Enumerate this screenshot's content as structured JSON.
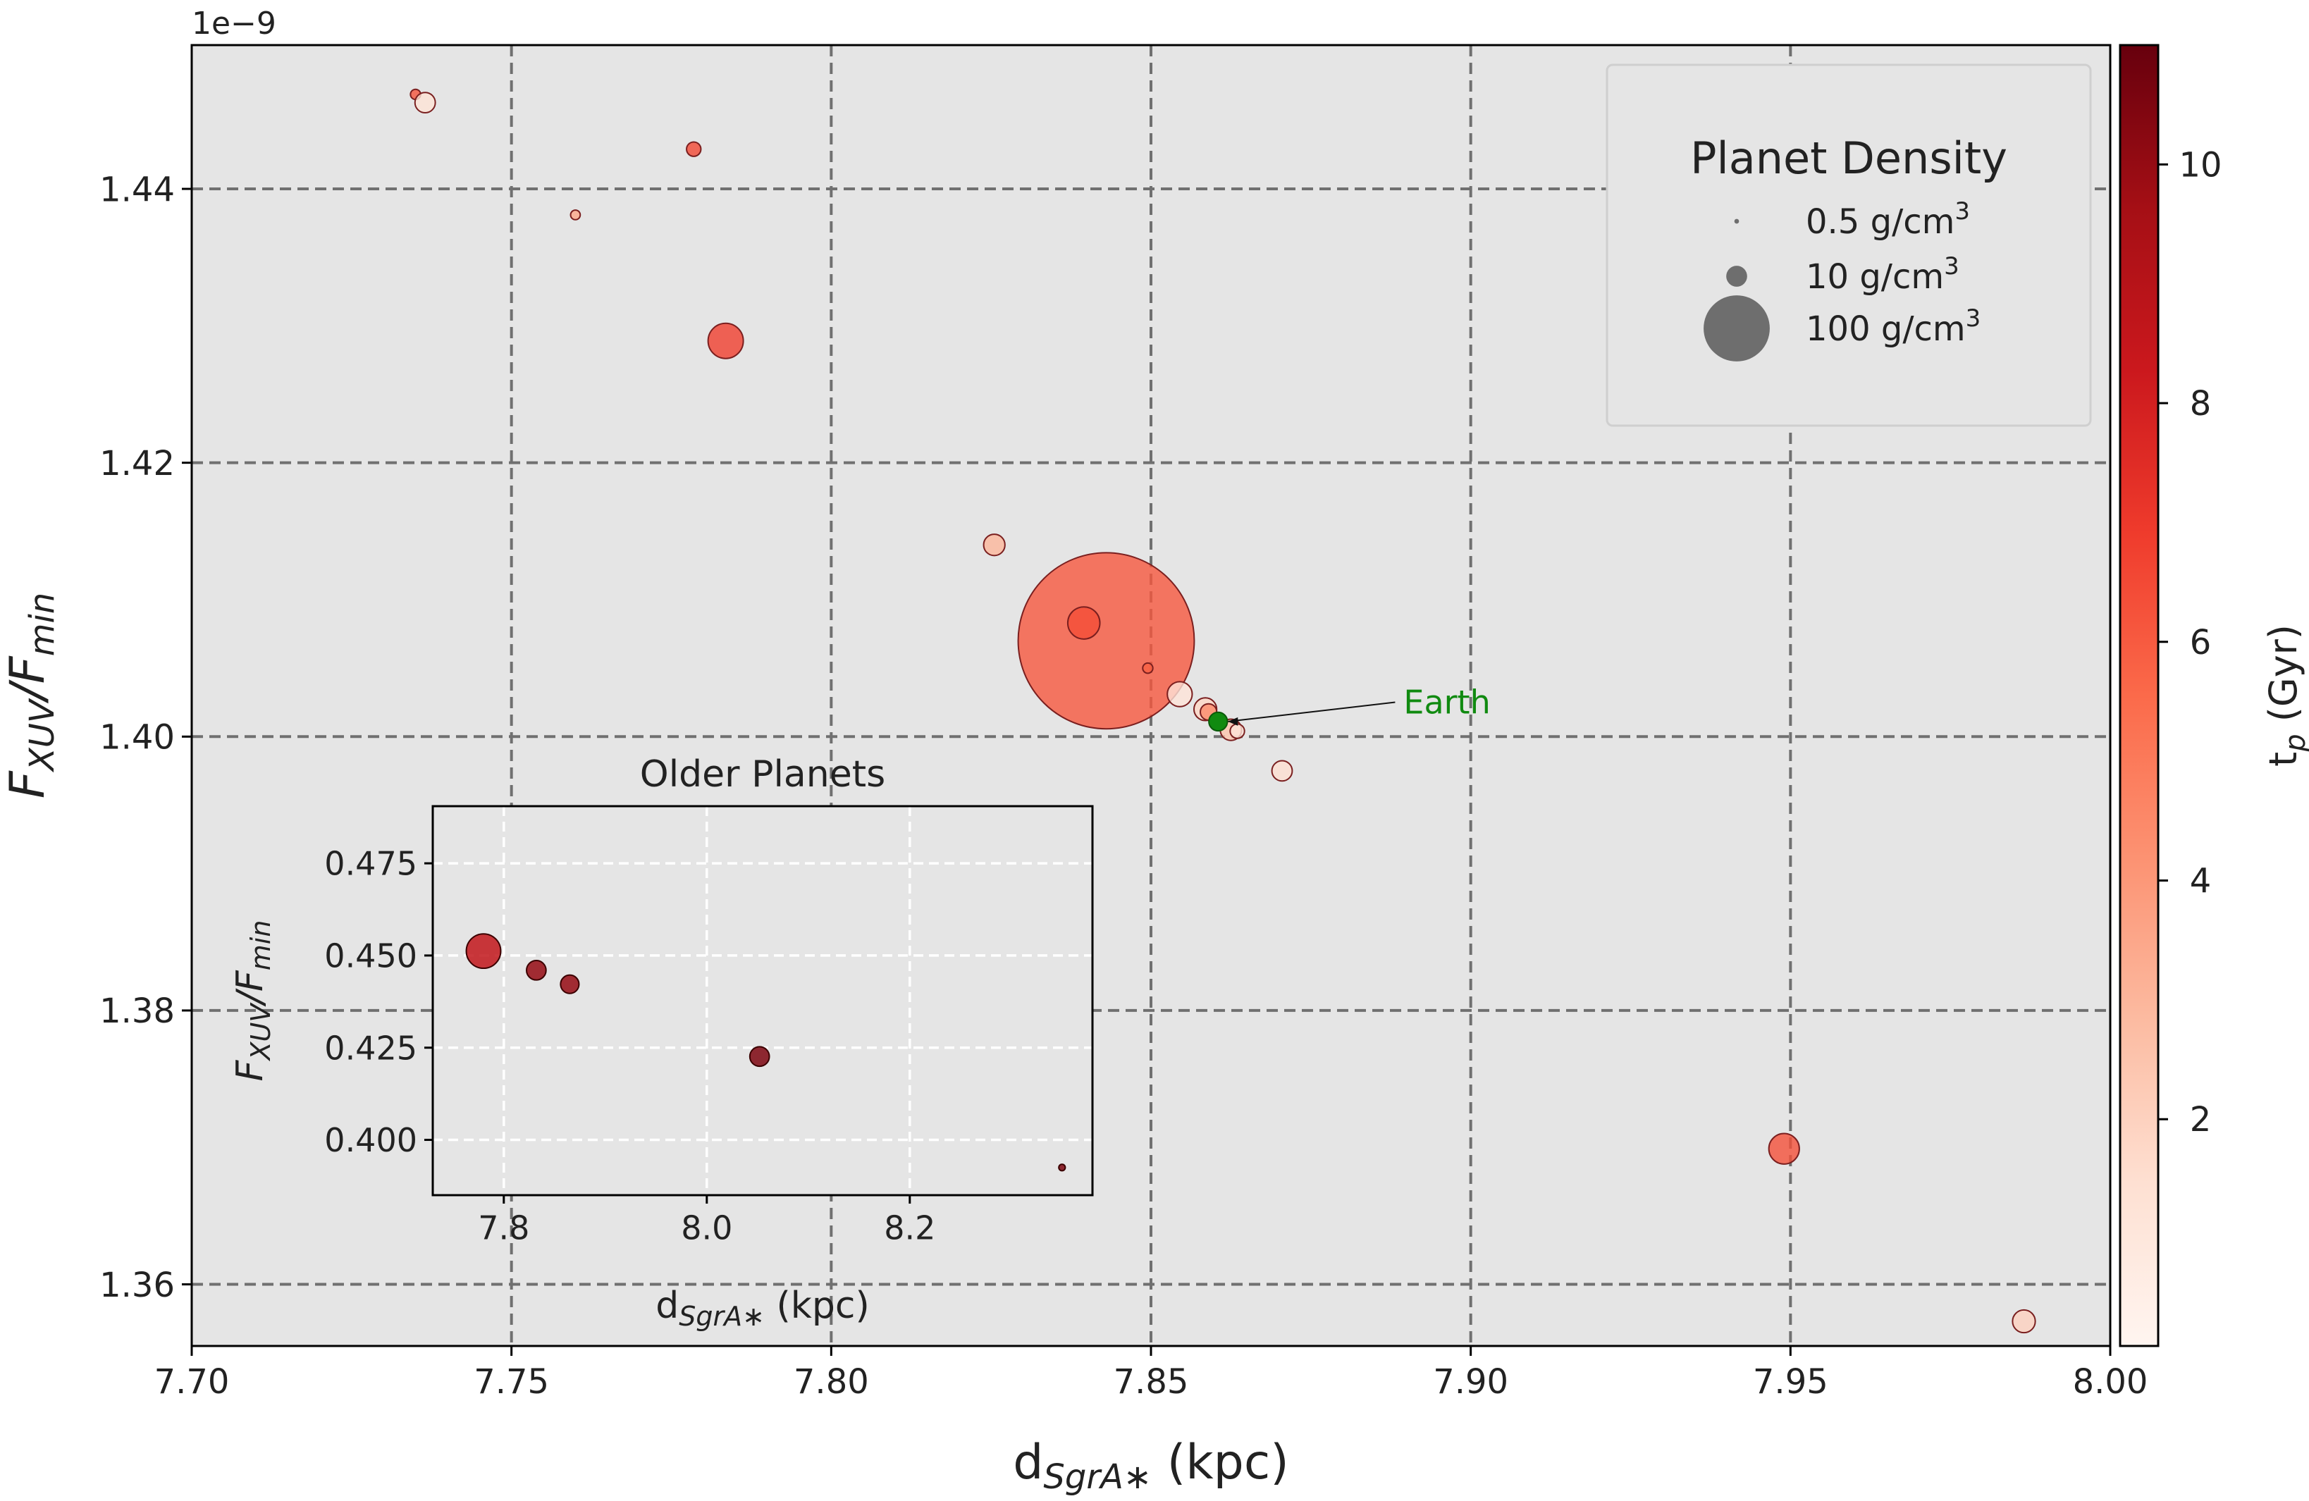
{
  "chart_data": [
    {
      "type": "scatter",
      "panel": "main",
      "exponent_label": "1e−9",
      "xlabel": {
        "main": "d",
        "sub": "SgrA∗",
        "unit": " (kpc)"
      },
      "ylabel": {
        "main": "F",
        "sub1": "XUV",
        "slash": "/F",
        "sub2": "min"
      },
      "xlim": [
        7.7,
        8.0
      ],
      "ylim": [
        1.3555,
        1.4505
      ],
      "xticks": [
        7.7,
        7.75,
        7.8,
        7.85,
        7.9,
        7.95,
        8.0
      ],
      "xtick_labels": [
        "7.70",
        "7.75",
        "7.80",
        "7.85",
        "7.90",
        "7.95",
        "8.00"
      ],
      "yticks": [
        1.36,
        1.38,
        1.4,
        1.42,
        1.44
      ],
      "ytick_labels": [
        "1.36",
        "1.38",
        "1.40",
        "1.42",
        "1.44"
      ],
      "grid": true,
      "points": [
        {
          "x": 7.735,
          "y": 1.4469,
          "density": 0.5,
          "age": 6.2
        },
        {
          "x": 7.7365,
          "y": 1.4463,
          "density": 2.0,
          "age": 1.3
        },
        {
          "x": 7.7785,
          "y": 1.4429,
          "density": 1.0,
          "age": 6.5
        },
        {
          "x": 7.76,
          "y": 1.4381,
          "density": 0.45,
          "age": 3.5
        },
        {
          "x": 7.7835,
          "y": 1.4289,
          "density": 6.0,
          "age": 6.8
        },
        {
          "x": 7.8255,
          "y": 1.414,
          "density": 2.2,
          "age": 3.0
        },
        {
          "x": 7.843,
          "y": 1.407,
          "density": 150,
          "age": 6.1
        },
        {
          "x": 7.8395,
          "y": 1.4083,
          "density": 5.0,
          "age": 6.4
        },
        {
          "x": 7.8495,
          "y": 1.405,
          "density": 0.5,
          "age": 5.8
        },
        {
          "x": 7.8545,
          "y": 1.4031,
          "density": 3.0,
          "age": 1.2
        },
        {
          "x": 7.8585,
          "y": 1.402,
          "density": 2.5,
          "age": 1.8
        },
        {
          "x": 7.859,
          "y": 1.4018,
          "density": 1.3,
          "age": 4.5
        },
        {
          "x": 7.8625,
          "y": 1.4005,
          "density": 2.2,
          "age": 2.5
        },
        {
          "x": 7.8635,
          "y": 1.4004,
          "density": 1.0,
          "age": 1.2
        },
        {
          "x": 7.8705,
          "y": 1.3975,
          "density": 2.0,
          "age": 1.5
        },
        {
          "x": 7.949,
          "y": 1.3699,
          "density": 4.5,
          "age": 6.3
        },
        {
          "x": 7.9865,
          "y": 1.3573,
          "density": 2.5,
          "age": 2.0
        }
      ],
      "earth": {
        "x": 7.8605,
        "y": 1.4011,
        "density": 5.51,
        "color": "#108a10",
        "label": "Earth",
        "label_x": 7.8895,
        "label_y": 1.4021
      },
      "legend": {
        "title": "Planet Density",
        "placement": "top-right",
        "entries": [
          {
            "density": 0.5,
            "label": "0.5 g/cm",
            "sup": "3"
          },
          {
            "density": 10,
            "label": "10 g/cm",
            "sup": "3"
          },
          {
            "density": 100,
            "label": "100 g/cm",
            "sup": "3"
          }
        ]
      },
      "colorbar": {
        "label": "t",
        "label_sub": "p",
        "label_unit": " (Gyr)",
        "range": [
          0.1,
          11.0
        ],
        "ticks": [
          2,
          4,
          6,
          8,
          10
        ],
        "tick_labels": [
          "2",
          "4",
          "6",
          "8",
          "10"
        ],
        "colormap": [
          "#fff5f0",
          "#fee0d2",
          "#fcbba1",
          "#fc9272",
          "#fb6a4a",
          "#ef3b2c",
          "#cb181d",
          "#a50f15",
          "#67000d"
        ]
      }
    },
    {
      "type": "scatter",
      "panel": "inset",
      "title": "Older Planets",
      "xlabel": {
        "main": "d",
        "sub": "SgrA∗",
        "unit": " (kpc)"
      },
      "ylabel": {
        "main": "F",
        "sub1": "XUV",
        "slash": "/F",
        "sub2": "min"
      },
      "xlim": [
        7.73,
        8.38
      ],
      "ylim": [
        0.385,
        0.4905
      ],
      "xticks": [
        7.8,
        8.0,
        8.2
      ],
      "xtick_labels": [
        "7.8",
        "8.0",
        "8.2"
      ],
      "yticks": [
        0.4,
        0.425,
        0.45,
        0.475
      ],
      "ytick_labels": [
        "0.400",
        "0.425",
        "0.450",
        "0.475"
      ],
      "grid": true,
      "points": [
        {
          "x": 7.78,
          "y": 0.4512,
          "density": 14,
          "age": 8.6
        },
        {
          "x": 7.832,
          "y": 0.446,
          "density": 4.5,
          "age": 10.0
        },
        {
          "x": 7.865,
          "y": 0.4422,
          "density": 4.0,
          "age": 10.0
        },
        {
          "x": 8.052,
          "y": 0.4226,
          "density": 4.5,
          "age": 10.5
        },
        {
          "x": 8.35,
          "y": 0.3925,
          "density": 0.5,
          "age": 10.5
        }
      ]
    }
  ]
}
